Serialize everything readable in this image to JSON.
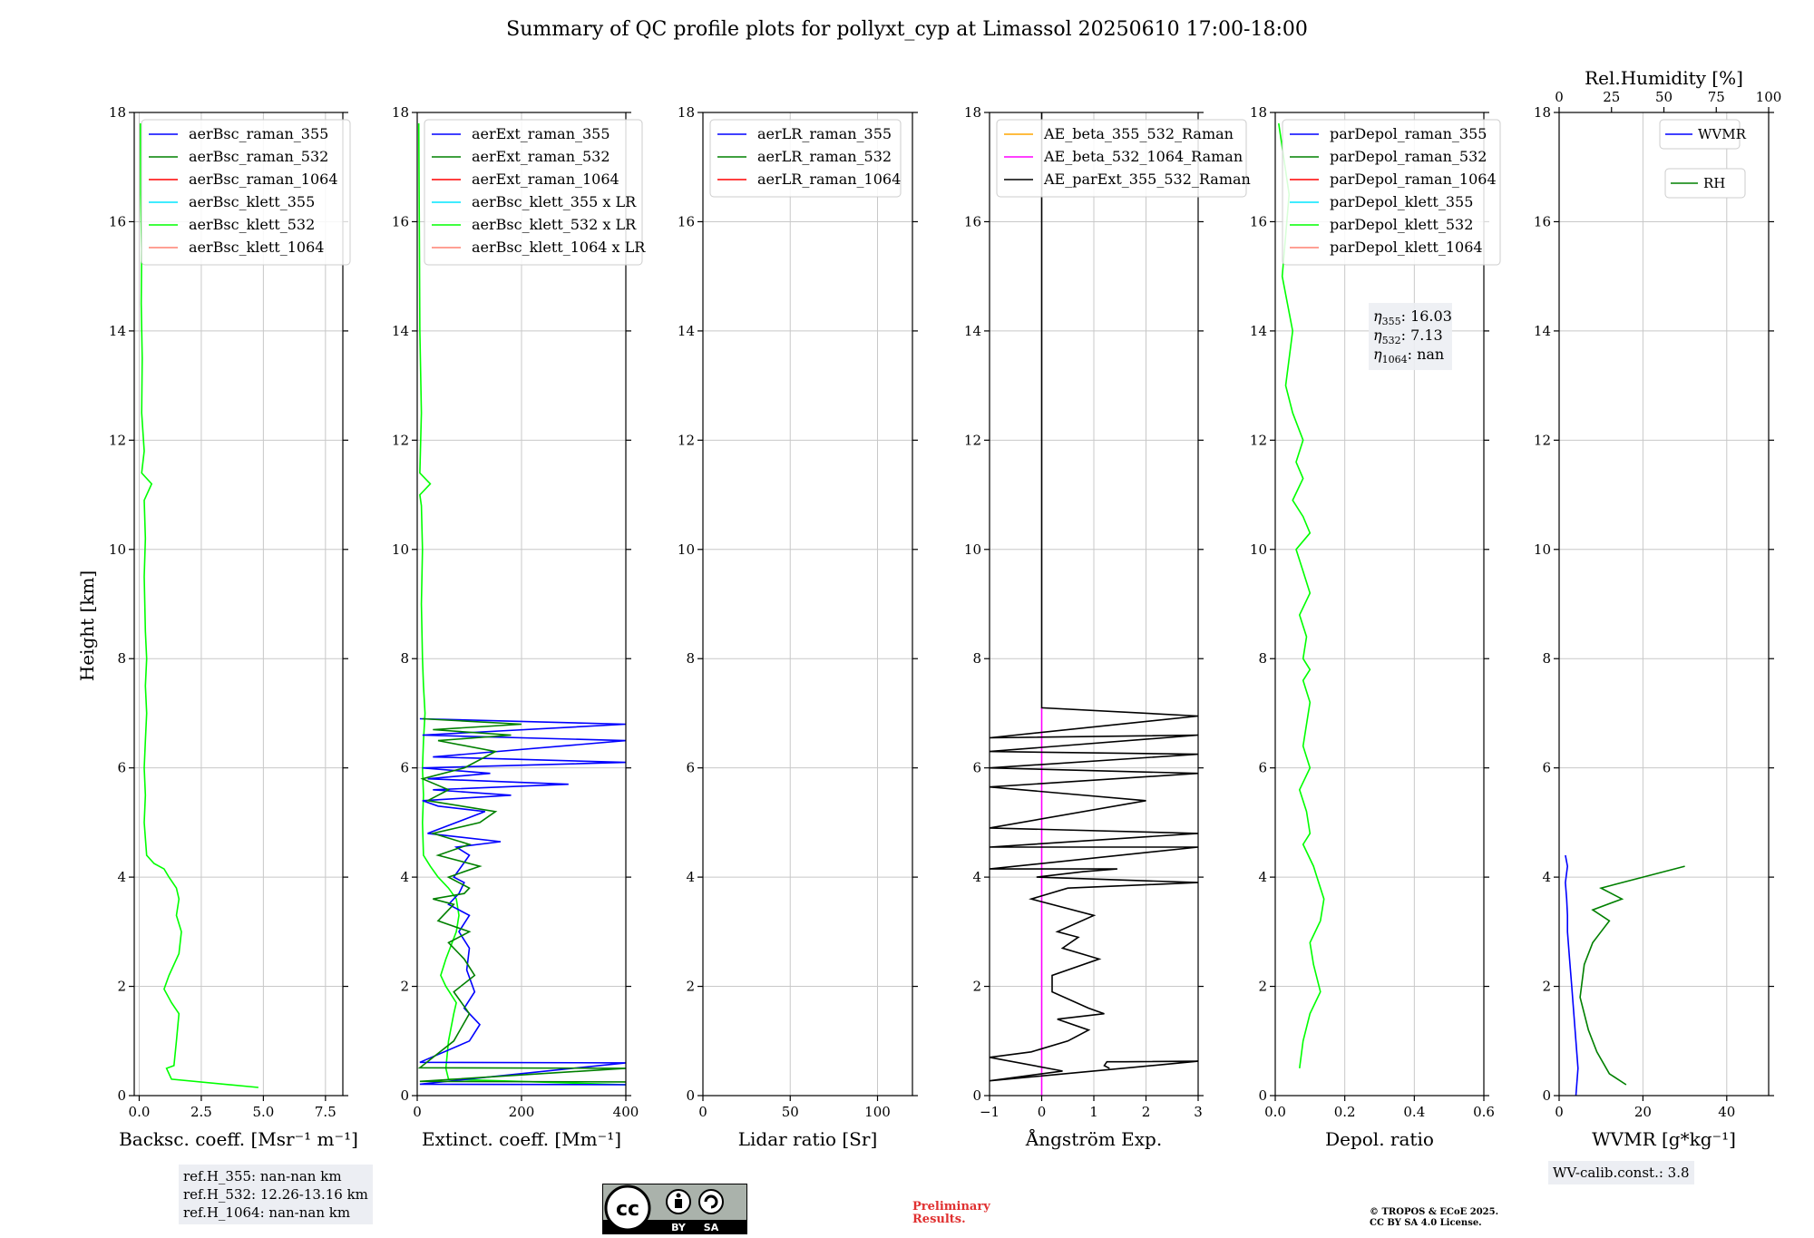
{
  "title": "Summary of QC profile plots for pollyxt_cyp at Limassol 20250610 17:00-18:00",
  "y_axis_label": "Height [km]",
  "ref_heights": [
    "ref.H_355: nan-nan km",
    "ref.H_532: 12.26-13.16 km",
    "ref.H_1064: nan-nan km"
  ],
  "wv_calib": "WV-calib.const.: 3.8",
  "preliminary": [
    "Preliminary",
    "Results."
  ],
  "copyright": [
    "© TROPOS & ECoE 2025.",
    "CC BY SA 4.0 License."
  ],
  "license_badge": [
    "BY",
    "SA"
  ],
  "colors": {
    "blue": "#0000ff",
    "green": "#008000",
    "red": "#ff0000",
    "cyan": "#00e5ff",
    "lime": "#00ff00",
    "salmon": "#ff8070",
    "orange": "#ffa500",
    "magenta": "#ff00ff",
    "black": "#000000"
  },
  "chart_data": [
    {
      "type": "line",
      "xlabel": "Backsc. coeff. [Msr⁻¹ m⁻¹]",
      "ylabel": "Height [km]",
      "xlim": [
        -0.2,
        8.2
      ],
      "ylim": [
        0,
        18
      ],
      "xticks": [
        0,
        2.5,
        5,
        7.5
      ],
      "xtick_labels": [
        "0.0",
        "2.5",
        "5.0",
        "7.5"
      ],
      "legend": [
        "aerBsc_raman_355",
        "aerBsc_raman_532",
        "aerBsc_raman_1064",
        "aerBsc_klett_355",
        "aerBsc_klett_532",
        "aerBsc_klett_1064"
      ],
      "legend_colors": [
        "blue",
        "green",
        "red",
        "cyan",
        "lime",
        "salmon"
      ],
      "series": [
        {
          "name": "aerBsc_klett_532",
          "color": "lime",
          "x": [
            4.8,
            1.3,
            1.1,
            1.4,
            1.5,
            1.6,
            1.3,
            1.0,
            1.2,
            1.6,
            1.7,
            1.5,
            1.6,
            1.5,
            1.2,
            1.0,
            0.6,
            0.3,
            0.2,
            0.25,
            0.2,
            0.25,
            0.3,
            0.25,
            0.3,
            0.25,
            0.2,
            0.25,
            0.2,
            0.5,
            0.1,
            0.2,
            0.1,
            0.12,
            0.08,
            0.1,
            0.06,
            0.05
          ],
          "y": [
            0.15,
            0.3,
            0.5,
            0.55,
            1.0,
            1.5,
            1.7,
            1.95,
            2.2,
            2.6,
            3.0,
            3.3,
            3.6,
            3.8,
            4.0,
            4.15,
            4.25,
            4.4,
            5.0,
            5.5,
            6.0,
            6.5,
            7.0,
            7.5,
            8.0,
            8.5,
            9.5,
            10.2,
            10.9,
            11.2,
            11.4,
            11.8,
            12.5,
            13.5,
            14.5,
            15.5,
            16.5,
            17.8
          ]
        }
      ]
    },
    {
      "type": "line",
      "xlabel": "Extinct. coeff. [Mm⁻¹]",
      "xlim": [
        0,
        400
      ],
      "ylim": [
        0,
        18
      ],
      "xticks": [
        0,
        200,
        400
      ],
      "xtick_labels": [
        "0",
        "200",
        "400"
      ],
      "legend": [
        "aerExt_raman_355",
        "aerExt_raman_532",
        "aerExt_raman_1064",
        "aerBsc_klett_355 x LR",
        "aerBsc_klett_532 x LR",
        "aerBsc_klett_1064 x LR"
      ],
      "legend_colors": [
        "blue",
        "green",
        "red",
        "cyan",
        "lime",
        "salmon"
      ],
      "series": [
        {
          "name": "aerBsc_klett_532 x LR",
          "color": "lime",
          "x": [
            400,
            60,
            55,
            60,
            70,
            75,
            55,
            45,
            55,
            75,
            80,
            75,
            60,
            40,
            25,
            12,
            10,
            12,
            10,
            12,
            15,
            12,
            10,
            8,
            10,
            8,
            5,
            25,
            5,
            8,
            5,
            4,
            3
          ],
          "y": [
            0.2,
            0.3,
            0.5,
            1.0,
            1.5,
            1.7,
            2.0,
            2.2,
            2.5,
            3.0,
            3.3,
            3.6,
            3.8,
            4.0,
            4.2,
            4.4,
            5.0,
            5.5,
            6.0,
            6.5,
            7.0,
            7.5,
            8.0,
            9.0,
            10.0,
            10.8,
            11.0,
            11.2,
            11.4,
            12.5,
            14.0,
            16.0,
            17.8
          ]
        },
        {
          "name": "aerExt_raman_355",
          "color": "blue",
          "x": [
            400,
            5,
            400,
            5,
            100,
            120,
            90,
            110,
            95,
            100,
            80,
            100,
            60,
            80,
            90,
            70,
            85,
            100,
            75,
            160,
            20,
            130,
            40,
            10,
            180,
            30,
            290,
            20,
            140,
            10,
            400,
            30,
            400,
            10,
            400,
            5
          ],
          "y": [
            0.2,
            0.21,
            0.6,
            0.61,
            1.0,
            1.3,
            1.6,
            1.9,
            2.3,
            2.7,
            3.0,
            3.3,
            3.5,
            3.7,
            3.9,
            4.0,
            4.2,
            4.4,
            4.55,
            4.65,
            4.8,
            5.2,
            5.3,
            5.4,
            5.5,
            5.6,
            5.7,
            5.8,
            5.9,
            6.0,
            6.1,
            6.2,
            6.5,
            6.6,
            6.8,
            6.9
          ]
        },
        {
          "name": "aerExt_raman_532",
          "color": "green",
          "x": [
            400,
            5,
            400,
            5,
            70,
            100,
            70,
            110,
            90,
            60,
            100,
            40,
            70,
            30,
            90,
            100,
            60,
            120,
            40,
            100,
            30,
            120,
            150,
            20,
            60,
            10,
            90,
            150,
            40,
            180,
            30,
            200,
            10
          ],
          "y": [
            0.25,
            0.26,
            0.5,
            0.51,
            1.0,
            1.5,
            1.9,
            2.2,
            2.5,
            2.8,
            3.0,
            3.2,
            3.5,
            3.6,
            3.7,
            3.8,
            4.0,
            4.2,
            4.4,
            4.6,
            4.8,
            5.0,
            5.2,
            5.4,
            5.6,
            5.8,
            6.0,
            6.3,
            6.5,
            6.6,
            6.7,
            6.8,
            6.9
          ]
        }
      ]
    },
    {
      "type": "line",
      "xlabel": "Lidar ratio [Sr]",
      "xlim": [
        0,
        120
      ],
      "ylim": [
        0,
        18
      ],
      "xticks": [
        0,
        50,
        100
      ],
      "xtick_labels": [
        "0",
        "50",
        "100"
      ],
      "legend": [
        "aerLR_raman_355",
        "aerLR_raman_532",
        "aerLR_raman_1064"
      ],
      "legend_colors": [
        "blue",
        "green",
        "red"
      ],
      "series": []
    },
    {
      "type": "line",
      "xlabel": "Ångström Exp.",
      "xlim": [
        -1,
        3
      ],
      "ylim": [
        0,
        18
      ],
      "xticks": [
        -1,
        0,
        1,
        2,
        3
      ],
      "xtick_labels": [
        "−1",
        "0",
        "1",
        "2",
        "3"
      ],
      "legend": [
        "AE_beta_355_532_Raman",
        "AE_beta_532_1064_Raman",
        "AE_parExt_355_532_Raman"
      ],
      "legend_colors": [
        "orange",
        "magenta",
        "black"
      ],
      "series": [
        {
          "name": "AE_beta_532_1064_Raman",
          "color": "magenta",
          "x": [
            0,
            0
          ],
          "y": [
            0,
            7.1
          ]
        },
        {
          "name": "AE_parExt_355_532_Raman",
          "color": "black",
          "x": [
            1.3,
            1.2,
            1.25,
            1.6,
            3.0,
            -1.0,
            0.4,
            -1.0,
            -0.2,
            0.5,
            0.9,
            0.3,
            1.2,
            0.9,
            0.2,
            0.2,
            1.1,
            0.4,
            0.7,
            0.3,
            1.0,
            -0.2,
            0.5,
            3.0,
            -0.1,
            0.8,
            1.45,
            -1.0,
            3.0,
            -1.0,
            3.0,
            -1.0,
            2.0,
            -1.0,
            3.0,
            -1.0,
            3.0,
            -1.0,
            3.0,
            -1.0,
            3.0,
            0.0,
            0.0
          ],
          "y": [
            0.5,
            0.55,
            0.62,
            0.62,
            0.63,
            0.27,
            0.45,
            0.7,
            0.8,
            1.0,
            1.2,
            1.4,
            1.5,
            1.6,
            1.9,
            2.2,
            2.5,
            2.7,
            2.9,
            3.0,
            3.3,
            3.6,
            3.8,
            3.9,
            4.0,
            4.1,
            4.15,
            4.15,
            4.55,
            4.55,
            4.8,
            4.9,
            5.4,
            5.65,
            5.9,
            6.0,
            6.25,
            6.3,
            6.6,
            6.55,
            6.95,
            7.1,
            18.0
          ]
        }
      ]
    },
    {
      "type": "line",
      "xlabel": "Depol. ratio",
      "xlim": [
        0,
        0.6
      ],
      "ylim": [
        0,
        18
      ],
      "xticks": [
        0,
        0.2,
        0.4,
        0.6
      ],
      "xtick_labels": [
        "0.0",
        "0.2",
        "0.4",
        "0.6"
      ],
      "legend": [
        "parDepol_raman_355",
        "parDepol_raman_532",
        "parDepol_raman_1064",
        "parDepol_klett_355",
        "parDepol_klett_532",
        "parDepol_klett_1064"
      ],
      "legend_colors": [
        "blue",
        "green",
        "red",
        "cyan",
        "lime",
        "salmon"
      ],
      "annotations": [
        {
          "sym": "η",
          "sub": "355",
          "text": ": 16.03"
        },
        {
          "sym": "η",
          "sub": "532",
          "text": ": 7.13"
        },
        {
          "sym": "η",
          "sub": "1064",
          "text": ": nan"
        }
      ],
      "series": [
        {
          "name": "parDepol_klett_532",
          "color": "lime",
          "x": [
            0.07,
            0.08,
            0.1,
            0.13,
            0.11,
            0.1,
            0.13,
            0.14,
            0.12,
            0.11,
            0.08,
            0.1,
            0.09,
            0.07,
            0.1,
            0.08,
            0.09,
            0.1,
            0.08,
            0.1,
            0.08,
            0.09,
            0.07,
            0.1,
            0.08,
            0.06,
            0.1,
            0.08,
            0.05,
            0.08,
            0.06,
            0.08,
            0.05,
            0.03,
            0.05,
            0.02,
            0.04,
            0.01
          ],
          "y": [
            0.5,
            1.0,
            1.5,
            1.9,
            2.4,
            2.8,
            3.2,
            3.6,
            4.0,
            4.2,
            4.6,
            4.8,
            5.2,
            5.6,
            6.0,
            6.4,
            6.8,
            7.2,
            7.6,
            7.8,
            8.0,
            8.4,
            8.8,
            9.2,
            9.6,
            10.0,
            10.3,
            10.6,
            10.9,
            11.3,
            11.6,
            12.0,
            12.5,
            13.0,
            14.0,
            15.0,
            16.5,
            17.8
          ]
        }
      ]
    },
    {
      "type": "line",
      "xlabel": "WVMR [g*kg⁻¹]",
      "x2label": "Rel.Humidity [%]",
      "xlim": [
        0,
        50
      ],
      "ylim": [
        0,
        18
      ],
      "xticks": [
        0,
        20,
        40
      ],
      "xtick_labels": [
        "0",
        "20",
        "40"
      ],
      "x2lim": [
        0,
        100
      ],
      "x2ticks": [
        0,
        25,
        50,
        75,
        100
      ],
      "x2tick_labels": [
        "0",
        "25",
        "50",
        "75",
        "100"
      ],
      "legend": [
        "WVMR",
        "RH"
      ],
      "legend_colors": [
        "blue",
        "green"
      ],
      "series": [
        {
          "name": "WVMR",
          "color": "blue",
          "x": [
            4,
            4.5,
            4,
            3.5,
            3,
            2.5,
            2,
            2,
            1.8,
            1.5,
            2,
            1.5
          ],
          "y": [
            0,
            0.5,
            1.0,
            1.5,
            2.0,
            2.5,
            3.0,
            3.3,
            3.6,
            3.9,
            4.2,
            4.4
          ]
        },
        {
          "name": "RH",
          "color": "green",
          "x": [
            16,
            12,
            9,
            7,
            5,
            6,
            8,
            10,
            12,
            8,
            15,
            10,
            20,
            30
          ],
          "y": [
            0.2,
            0.4,
            0.8,
            1.2,
            1.8,
            2.4,
            2.8,
            3.0,
            3.2,
            3.4,
            3.6,
            3.8,
            4.0,
            4.2
          ]
        }
      ]
    }
  ]
}
